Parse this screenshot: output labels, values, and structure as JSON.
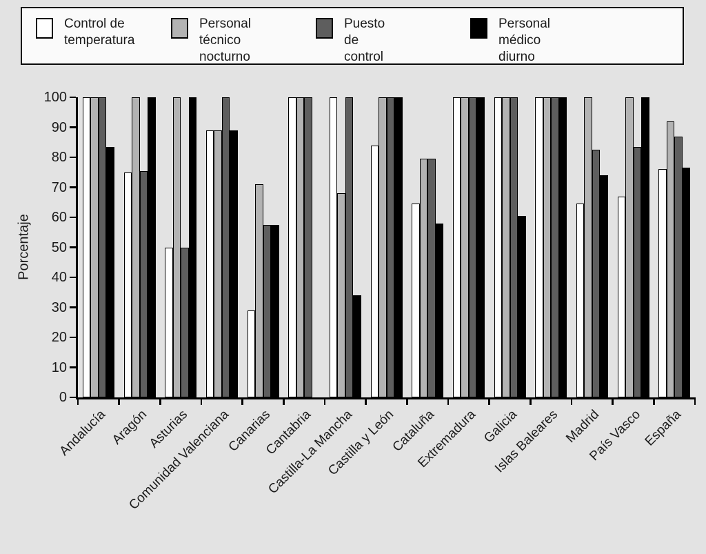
{
  "page": {
    "background": "#e3e3e3"
  },
  "legend": {
    "items": [
      {
        "label": "Control de temperatura",
        "lines": [
          "Control de",
          "temperatura"
        ]
      },
      {
        "label": "Personal técnico nocturno",
        "lines": [
          "Personal técnico",
          "nocturno"
        ]
      },
      {
        "label": "Puesto de control",
        "lines": [
          "Puesto de control"
        ]
      },
      {
        "label": "Personal médico diurno",
        "lines": [
          "Personal médico",
          "diurno"
        ]
      }
    ]
  },
  "chart_data": {
    "type": "bar",
    "title": "",
    "xlabel": "",
    "ylabel": "Porcentaje",
    "ylim": [
      0,
      100
    ],
    "yticks": [
      0,
      10,
      20,
      30,
      40,
      50,
      60,
      70,
      80,
      90,
      100
    ],
    "grid": false,
    "legend_position": "top",
    "categories": [
      "Andalucía",
      "Aragón",
      "Asturias",
      "Comunidad Valenciana",
      "Canarias",
      "Cantabria",
      "Castilla-La Mancha",
      "Castilla y León",
      "Cataluña",
      "Extremadura",
      "Galicia",
      "Islas Baleares",
      "Madrid",
      "País Vasco",
      "España"
    ],
    "series": [
      {
        "name": "Control de temperatura",
        "color": "#ffffff",
        "values": [
          100,
          75,
          50,
          89,
          29,
          100,
          100,
          84,
          64.5,
          100,
          100,
          100,
          64.5,
          67,
          76
        ]
      },
      {
        "name": "Personal técnico nocturno",
        "color": "#b3b3b3",
        "values": [
          100,
          100,
          100,
          89,
          71,
          100,
          68,
          100,
          79.5,
          100,
          100,
          100,
          100,
          100,
          92
        ]
      },
      {
        "name": "Puesto de control",
        "color": "#5e5e5e",
        "values": [
          100,
          75.5,
          50,
          100,
          57.5,
          100,
          100,
          100,
          79.5,
          100,
          100,
          100,
          82.5,
          83.5,
          87
        ]
      },
      {
        "name": "Personal médico diurno",
        "color": "#000000",
        "values": [
          83.5,
          100,
          100,
          89,
          57.5,
          0,
          34,
          100,
          58,
          100,
          60.5,
          100,
          74,
          100,
          76.5
        ]
      }
    ]
  }
}
